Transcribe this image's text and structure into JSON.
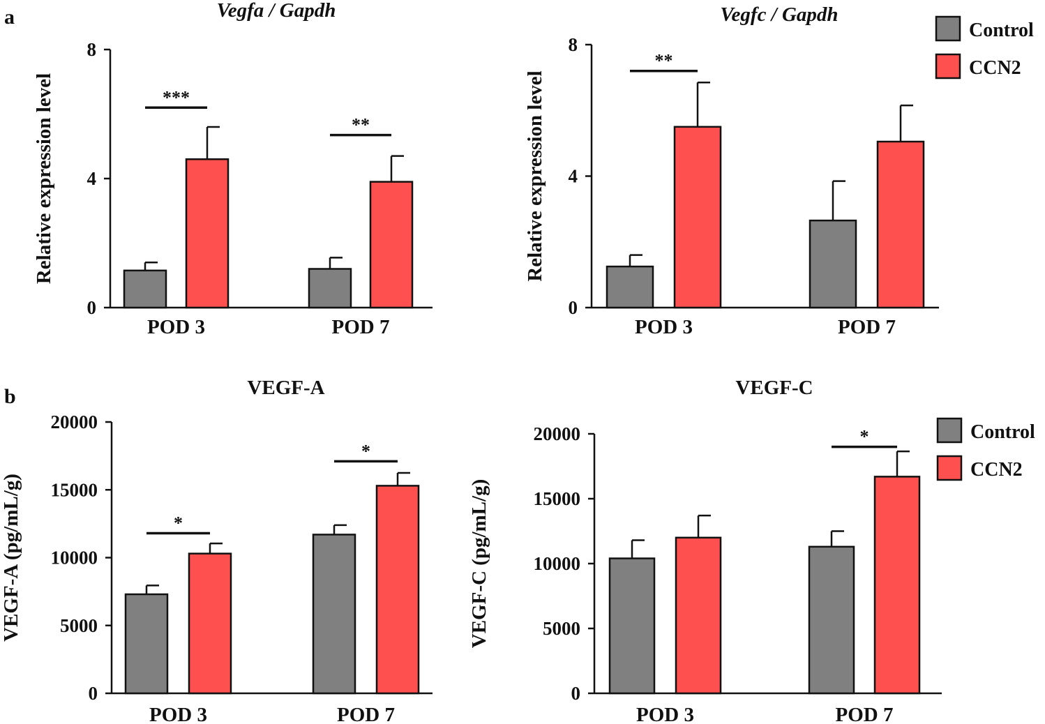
{
  "figure": {
    "panel_a_letter": "a",
    "panel_b_letter": "b"
  },
  "colors": {
    "control": "#808080",
    "ccn2": "#FF5050"
  },
  "legend_top": {
    "items": [
      {
        "label": "Control"
      },
      {
        "label": "CCN2"
      }
    ]
  },
  "legend_bottom": {
    "items": [
      {
        "label": "Control"
      },
      {
        "label": "CCN2"
      }
    ]
  },
  "chart_data": [
    {
      "type": "bar",
      "title": "Vegfa / Gapdh",
      "title_italic": true,
      "ylabel": "Relative expression level",
      "categories": [
        "POD 3",
        "POD 7"
      ],
      "yticks": [
        0,
        4,
        8
      ],
      "ytick_labels": [
        "0",
        "4",
        "8"
      ],
      "ylim": [
        0,
        8
      ],
      "series": [
        {
          "name": "Control",
          "values": [
            1.15,
            1.2
          ],
          "errors": [
            0.25,
            0.35
          ]
        },
        {
          "name": "CCN2",
          "values": [
            4.6,
            3.9
          ],
          "errors": [
            1.0,
            0.8
          ]
        }
      ],
      "significance": [
        {
          "category": "POD 3",
          "label": "***",
          "y": 6.2
        },
        {
          "category": "POD 7",
          "label": "**",
          "y": 5.35
        }
      ]
    },
    {
      "type": "bar",
      "title": "Vegfc / Gapdh",
      "title_italic": true,
      "ylabel": "Relative expression level",
      "categories": [
        "POD 3",
        "POD 7"
      ],
      "yticks": [
        0,
        4,
        8
      ],
      "ytick_labels": [
        "0",
        "4",
        "8"
      ],
      "ylim": [
        0,
        8
      ],
      "series": [
        {
          "name": "Control",
          "values": [
            1.25,
            2.65
          ],
          "errors": [
            0.35,
            1.2
          ]
        },
        {
          "name": "CCN2",
          "values": [
            5.5,
            5.05
          ],
          "errors": [
            1.35,
            1.1
          ]
        }
      ],
      "significance": [
        {
          "category": "POD 3",
          "label": "**",
          "y": 7.2
        }
      ]
    },
    {
      "type": "bar",
      "title": "VEGF-A",
      "title_italic": false,
      "ylabel": "VEGF-A (pg/mL/g)",
      "categories": [
        "POD 3",
        "POD 7"
      ],
      "yticks": [
        0,
        5000,
        10000,
        15000,
        20000
      ],
      "ytick_labels": [
        "0",
        "5000",
        "10000",
        "15000",
        "20000"
      ],
      "ylim": [
        0,
        20000
      ],
      "series": [
        {
          "name": "Control",
          "values": [
            7300,
            11700
          ],
          "errors": [
            650,
            700
          ]
        },
        {
          "name": "CCN2",
          "values": [
            10300,
            15300
          ],
          "errors": [
            750,
            950
          ]
        }
      ],
      "significance": [
        {
          "category": "POD 3",
          "label": "*",
          "y": 11800
        },
        {
          "category": "POD 7",
          "label": "*",
          "y": 17100
        }
      ]
    },
    {
      "type": "bar",
      "title": "VEGF-C",
      "title_italic": false,
      "ylabel": "VEGF-C (pg/mL/g)",
      "categories": [
        "POD 3",
        "POD 7"
      ],
      "yticks": [
        0,
        5000,
        10000,
        15000,
        20000
      ],
      "ytick_labels": [
        "0",
        "5000",
        "10000",
        "15000",
        "20000"
      ],
      "ylim": [
        0,
        20000
      ],
      "series": [
        {
          "name": "Control",
          "values": [
            10400,
            11300
          ],
          "errors": [
            1400,
            1200
          ]
        },
        {
          "name": "CCN2",
          "values": [
            12000,
            16700
          ],
          "errors": [
            1700,
            1950
          ]
        }
      ],
      "significance": [
        {
          "category": "POD 7",
          "label": "*",
          "y": 19000
        }
      ]
    }
  ]
}
